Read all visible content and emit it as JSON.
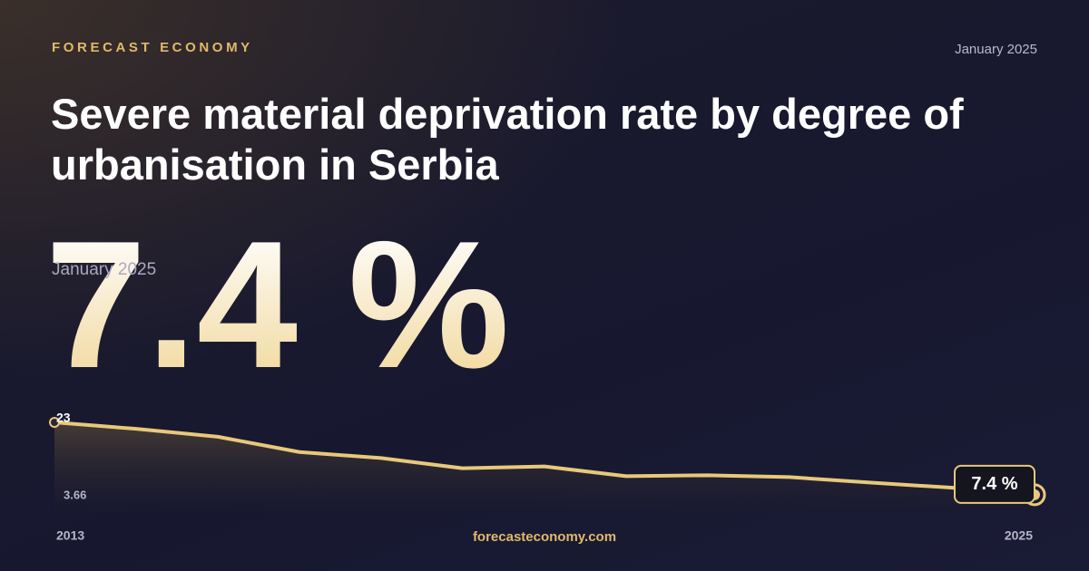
{
  "header": {
    "brand": "FORECAST ECONOMY",
    "date": "January 2025",
    "title": "Severe material deprivation rate by degree of urbanisation in Serbia"
  },
  "headline": {
    "label": "7.4 %",
    "date": "January 2025"
  },
  "chart_data": {
    "type": "line",
    "x": [
      2013,
      2014,
      2015,
      2016,
      2017,
      2018,
      2019,
      2020,
      2021,
      2022,
      2023,
      2024,
      2025
    ],
    "values": [
      23,
      21.6,
      19.9,
      16.6,
      15.3,
      13.1,
      13.5,
      11.4,
      11.6,
      11.2,
      10.0,
      8.9,
      7.4
    ],
    "color": "#e8c87a",
    "xlim": [
      2013,
      2025
    ],
    "xticks": [
      2013,
      2025
    ],
    "ylim": [
      3.66,
      23
    ],
    "yticks": [
      3.66,
      23
    ]
  },
  "footer": {
    "site": "forecasteconomy.com"
  }
}
